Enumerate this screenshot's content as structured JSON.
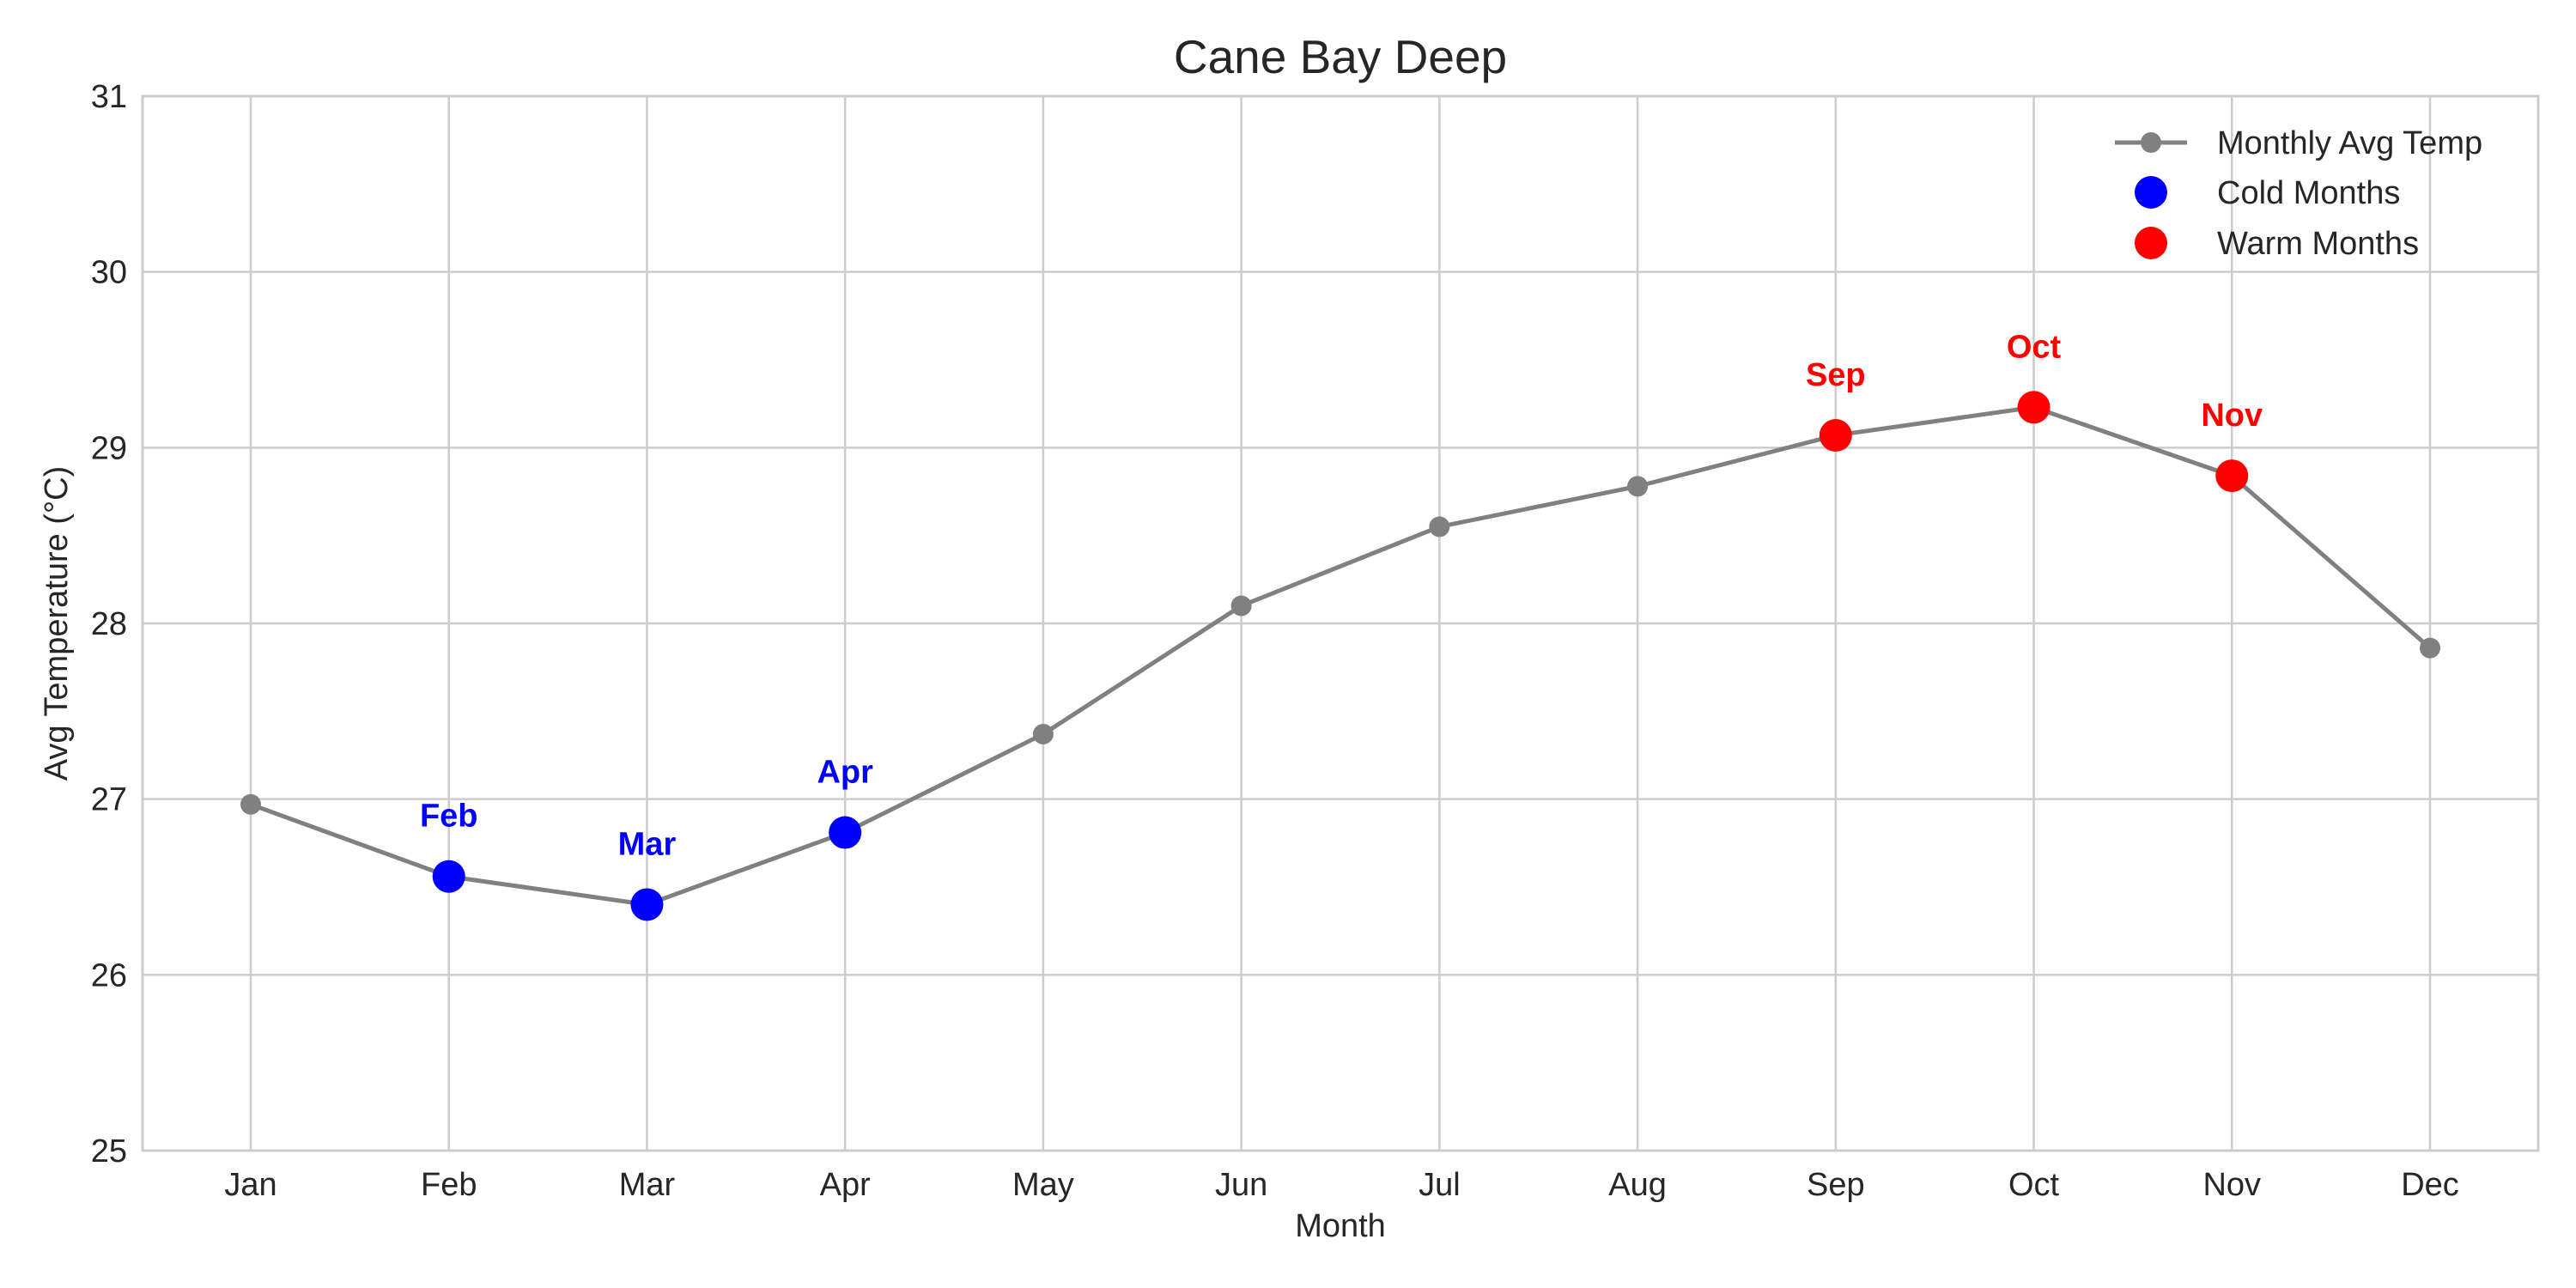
{
  "chart_data": {
    "type": "line",
    "title": "Cane Bay Deep",
    "xlabel": "Month",
    "ylabel": "Avg Temperature (°C)",
    "ylim": [
      25,
      31
    ],
    "yticks": [
      25,
      26,
      27,
      28,
      29,
      30,
      31
    ],
    "grid": true,
    "legend_position": "top-right",
    "categories": [
      "Jan",
      "Feb",
      "Mar",
      "Apr",
      "May",
      "Jun",
      "Jul",
      "Aug",
      "Sep",
      "Oct",
      "Nov",
      "Dec"
    ],
    "series": [
      {
        "name": "Monthly Avg Temp",
        "color": "#808080",
        "values": [
          26.97,
          26.56,
          26.4,
          26.81,
          27.37,
          28.1,
          28.55,
          28.78,
          29.07,
          29.23,
          28.84,
          27.86
        ]
      }
    ],
    "highlights": [
      {
        "name": "Cold Months",
        "color": "#0000ff",
        "months": [
          "Feb",
          "Mar",
          "Apr"
        ]
      },
      {
        "name": "Warm Months",
        "color": "#ff0000",
        "months": [
          "Sep",
          "Oct",
          "Nov"
        ]
      }
    ]
  }
}
